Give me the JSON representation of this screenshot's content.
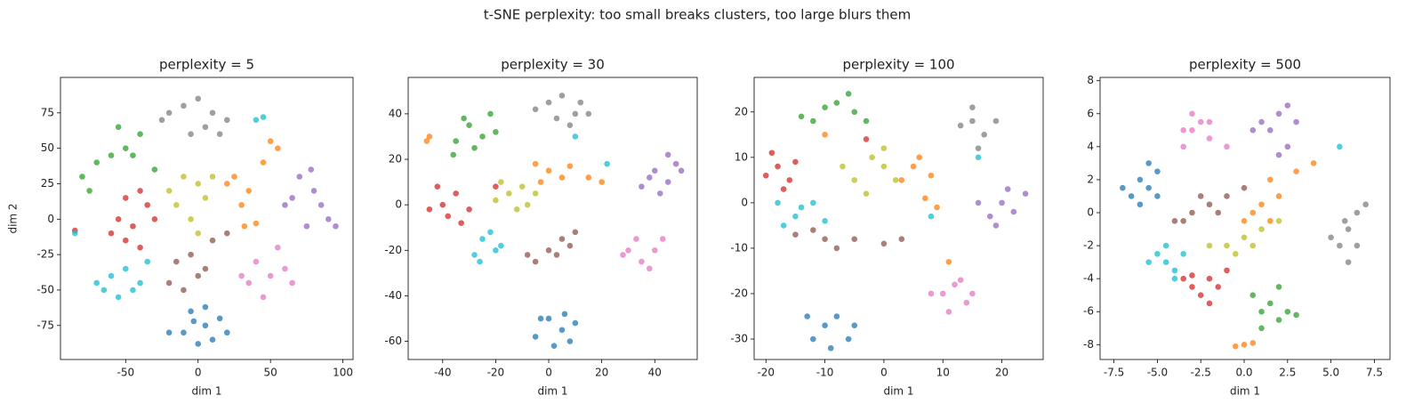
{
  "title": "t-SNE perplexity: too small breaks clusters, too large blurs them",
  "chart_data": [
    {
      "type": "scatter",
      "title": "perplexity = 5",
      "xlabel": "dim 1",
      "ylabel": "dim 2",
      "xlim": [
        -95,
        107
      ],
      "ylim": [
        -99,
        100
      ],
      "xticks": [
        -50,
        0,
        50,
        100
      ],
      "yticks": [
        -75,
        -50,
        -25,
        0,
        25,
        50,
        75
      ],
      "series": [
        {
          "color": "#1f77b4",
          "x": [
            -5,
            5,
            15,
            20,
            -10,
            0,
            10,
            -20,
            5,
            -3
          ],
          "y": [
            -65,
            -62,
            -70,
            -80,
            -80,
            -88,
            -85,
            -80,
            -75,
            -72
          ]
        },
        {
          "color": "#ff7f0e",
          "x": [
            25,
            35,
            30,
            45,
            55,
            50,
            32,
            40,
            20
          ],
          "y": [
            30,
            20,
            10,
            40,
            50,
            55,
            -5,
            -3,
            25
          ]
        },
        {
          "color": "#2ca02c",
          "x": [
            -50,
            -40,
            -55,
            -70,
            -80,
            -75,
            -60,
            -45,
            -30
          ],
          "y": [
            50,
            60,
            65,
            40,
            30,
            20,
            45,
            45,
            35
          ]
        },
        {
          "color": "#d62728",
          "x": [
            -50,
            -40,
            -35,
            -55,
            -45,
            -60,
            -40,
            -30,
            -85,
            -50
          ],
          "y": [
            15,
            20,
            10,
            0,
            -5,
            -10,
            -20,
            0,
            -8,
            -15
          ]
        },
        {
          "color": "#9467bd",
          "x": [
            70,
            80,
            60,
            90,
            75,
            65,
            85,
            95,
            78
          ],
          "y": [
            30,
            20,
            10,
            0,
            -5,
            15,
            10,
            -5,
            35
          ]
        },
        {
          "color": "#8c564b",
          "x": [
            -15,
            -5,
            0,
            -20,
            10,
            20,
            5,
            -10
          ],
          "y": [
            -30,
            -25,
            -40,
            -45,
            -15,
            -10,
            -35,
            -50
          ]
        },
        {
          "color": "#e377c2",
          "x": [
            40,
            50,
            35,
            60,
            45,
            55,
            30,
            65
          ],
          "y": [
            -30,
            -40,
            -45,
            -35,
            -55,
            -20,
            -40,
            -45
          ]
        },
        {
          "color": "#7f7f7f",
          "x": [
            -20,
            -10,
            0,
            10,
            20,
            -5,
            5,
            15,
            -25
          ],
          "y": [
            75,
            80,
            85,
            75,
            70,
            60,
            65,
            60,
            70
          ]
        },
        {
          "color": "#bcbd22",
          "x": [
            -10,
            0,
            5,
            -15,
            -5,
            10,
            -20,
            0
          ],
          "y": [
            30,
            25,
            15,
            10,
            0,
            30,
            20,
            -10
          ]
        },
        {
          "color": "#17becf",
          "x": [
            -60,
            -50,
            -40,
            -55,
            -70,
            -35,
            -45,
            -65,
            45,
            40,
            -85
          ],
          "y": [
            -40,
            -35,
            -45,
            -55,
            -45,
            -30,
            -50,
            -50,
            72,
            70,
            -10
          ]
        }
      ]
    },
    {
      "type": "scatter",
      "title": "perplexity = 30",
      "xlabel": "dim 1",
      "xlim": [
        -53,
        56
      ],
      "ylim": [
        -68,
        56
      ],
      "xticks": [
        -40,
        -20,
        0,
        20,
        40
      ],
      "yticks": [
        -60,
        -40,
        -20,
        0,
        20,
        40
      ],
      "series": [
        {
          "color": "#1f77b4",
          "x": [
            0,
            5,
            10,
            -5,
            2,
            8,
            -3,
            6
          ],
          "y": [
            -50,
            -55,
            -52,
            -58,
            -62,
            -60,
            -50,
            -48
          ]
        },
        {
          "color": "#ff7f0e",
          "x": [
            0,
            5,
            -3,
            8,
            15,
            20,
            -5,
            -45,
            -46
          ],
          "y": [
            15,
            12,
            10,
            17,
            12,
            10,
            18,
            30,
            28
          ]
        },
        {
          "color": "#2ca02c",
          "x": [
            -30,
            -25,
            -35,
            -20,
            -28,
            -32,
            -22,
            -36
          ],
          "y": [
            35,
            30,
            28,
            32,
            25,
            38,
            40,
            22
          ]
        },
        {
          "color": "#d62728",
          "x": [
            -40,
            -35,
            -38,
            -45,
            -30,
            -42,
            -33,
            -20
          ],
          "y": [
            0,
            5,
            -5,
            -2,
            -2,
            8,
            -8,
            8
          ]
        },
        {
          "color": "#9467bd",
          "x": [
            40,
            45,
            35,
            48,
            42,
            50,
            38,
            45
          ],
          "y": [
            15,
            10,
            8,
            18,
            5,
            15,
            12,
            22
          ]
        },
        {
          "color": "#8c564b",
          "x": [
            0,
            5,
            -5,
            10,
            3,
            -8,
            8
          ],
          "y": [
            -20,
            -15,
            -25,
            -12,
            -22,
            -22,
            -18
          ]
        },
        {
          "color": "#e377c2",
          "x": [
            30,
            35,
            40,
            33,
            38,
            28,
            43
          ],
          "y": [
            -20,
            -25,
            -20,
            -15,
            -28,
            -22,
            -15
          ]
        },
        {
          "color": "#7f7f7f",
          "x": [
            0,
            5,
            10,
            -5,
            3,
            12,
            8,
            15
          ],
          "y": [
            45,
            48,
            40,
            42,
            38,
            45,
            35,
            40
          ]
        },
        {
          "color": "#bcbd22",
          "x": [
            -15,
            -10,
            -20,
            -5,
            -12,
            -18,
            -8
          ],
          "y": [
            5,
            8,
            2,
            5,
            -2,
            10,
            0
          ]
        },
        {
          "color": "#17becf",
          "x": [
            -25,
            -20,
            -28,
            -22,
            -18,
            -26,
            10,
            22
          ],
          "y": [
            -15,
            -20,
            -22,
            -12,
            -18,
            -25,
            30,
            18
          ]
        }
      ]
    },
    {
      "type": "scatter",
      "title": "perplexity = 100",
      "xlabel": "dim 1",
      "xlim": [
        -22,
        27
      ],
      "ylim": [
        -34.5,
        27.6
      ],
      "xticks": [
        -20,
        -10,
        0,
        10,
        20
      ],
      "yticks": [
        -30,
        -20,
        -10,
        0,
        10,
        20
      ],
      "series": [
        {
          "color": "#1f77b4",
          "x": [
            -10,
            -8,
            -12,
            -6,
            -9,
            -13,
            -5
          ],
          "y": [
            -27,
            -25,
            -30,
            -30,
            -32,
            -25,
            -27
          ]
        },
        {
          "color": "#ff7f0e",
          "x": [
            5,
            8,
            6,
            3,
            9,
            7,
            -10,
            11
          ],
          "y": [
            8,
            6,
            10,
            5,
            -1,
            1,
            15,
            -13
          ]
        },
        {
          "color": "#2ca02c",
          "x": [
            -8,
            -5,
            -10,
            -14,
            -6,
            -3,
            -12
          ],
          "y": [
            22,
            20,
            21,
            19,
            24,
            18,
            18
          ]
        },
        {
          "color": "#d62728",
          "x": [
            -18,
            -16,
            -20,
            -15,
            -17,
            -19,
            -3
          ],
          "y": [
            8,
            5,
            6,
            9,
            3,
            11,
            14
          ]
        },
        {
          "color": "#9467bd",
          "x": [
            20,
            22,
            18,
            24,
            19,
            21,
            16
          ],
          "y": [
            0,
            -2,
            -3,
            2,
            -5,
            3,
            0
          ]
        },
        {
          "color": "#8c564b",
          "x": [
            -10,
            -5,
            -15,
            0,
            -8,
            3,
            -12
          ],
          "y": [
            -8,
            -8,
            -7,
            -9,
            -10,
            -8,
            -6
          ]
        },
        {
          "color": "#e377c2",
          "x": [
            10,
            12,
            14,
            11,
            13,
            8,
            15
          ],
          "y": [
            -20,
            -18,
            -22,
            -24,
            -17,
            -20,
            -20
          ]
        },
        {
          "color": "#7f7f7f",
          "x": [
            15,
            17,
            13,
            19,
            16,
            15
          ],
          "y": [
            18,
            15,
            17,
            18,
            12,
            21
          ]
        },
        {
          "color": "#bcbd22",
          "x": [
            -5,
            0,
            -2,
            2,
            -7,
            -3,
            0
          ],
          "y": [
            5,
            8,
            10,
            5,
            8,
            2,
            12
          ]
        },
        {
          "color": "#17becf",
          "x": [
            -15,
            -12,
            -17,
            -14,
            -10,
            -18,
            8,
            16
          ],
          "y": [
            -3,
            0,
            -5,
            -1,
            -4,
            0,
            -3,
            10
          ]
        }
      ]
    },
    {
      "type": "scatter",
      "title": "perplexity = 500",
      "xlabel": "dim 1",
      "xlim": [
        -8.3,
        8.4
      ],
      "ylim": [
        -8.9,
        8.2
      ],
      "xticks": [
        -7.5,
        {
          "value": -5,
          "label": "-5.0"
        },
        -2.5,
        {
          "value": 0,
          "label": "0.0"
        },
        2.5,
        {
          "value": 5,
          "label": "5.0"
        },
        7.5
      ],
      "yticks": [
        -8,
        -6,
        -4,
        -2,
        0,
        2,
        4,
        6,
        8
      ],
      "series": [
        {
          "color": "#1f77b4",
          "x": [
            -6,
            -5.5,
            -6.5,
            -5,
            -6,
            -5.5,
            -7,
            -5
          ],
          "y": [
            2,
            1.5,
            1,
            2.5,
            0.5,
            3,
            1.5,
            1
          ]
        },
        {
          "color": "#ff7f0e",
          "x": [
            0.5,
            1,
            1.5,
            2,
            3,
            4,
            0,
            1.5,
            0,
            0.5,
            -0.5
          ],
          "y": [
            0,
            0.5,
            -0.5,
            1,
            2.5,
            3,
            -0.5,
            2,
            -8,
            -7.9,
            -8.1
          ]
        },
        {
          "color": "#2ca02c",
          "x": [
            1,
            1.5,
            2,
            0.5,
            2.5,
            3,
            1,
            2
          ],
          "y": [
            -6,
            -5.5,
            -6.5,
            -5,
            -6,
            -6.2,
            -7,
            -4.5
          ]
        },
        {
          "color": "#d62728",
          "x": [
            -3,
            -2,
            -2.5,
            -3.5,
            -1.5,
            -2,
            -1,
            -3
          ],
          "y": [
            -4.5,
            -4,
            -5,
            -4,
            -4.5,
            -5.5,
            -3.5,
            -3.8
          ]
        },
        {
          "color": "#9467bd",
          "x": [
            1.5,
            2,
            2.5,
            1,
            3,
            2,
            0.5,
            2.5
          ],
          "y": [
            5,
            6,
            4,
            5.5,
            5.5,
            3.5,
            5,
            6.5
          ]
        },
        {
          "color": "#8c564b",
          "x": [
            -3,
            -2,
            -1,
            -3.5,
            -2.5,
            -1.5,
            0,
            -4
          ],
          "y": [
            0,
            0.5,
            1,
            -0.5,
            1,
            0,
            1.5,
            -0.5
          ]
        },
        {
          "color": "#e377c2",
          "x": [
            -3,
            -2.5,
            -2,
            -3.5,
            -2,
            -1,
            -3,
            -3.5
          ],
          "y": [
            5,
            5.5,
            4.5,
            4,
            5.5,
            4,
            6,
            5
          ]
        },
        {
          "color": "#7f7f7f",
          "x": [
            6,
            6.5,
            5.5,
            6,
            7,
            5,
            6.5,
            5.8
          ],
          "y": [
            -1,
            0,
            -2,
            -3,
            0.5,
            -1.5,
            -2,
            -0.5
          ]
        },
        {
          "color": "#bcbd22",
          "x": [
            -1,
            0,
            1,
            -2,
            2,
            -0.5,
            0.5
          ],
          "y": [
            -2,
            -1.5,
            -1,
            -2,
            -0.5,
            -2.5,
            -2
          ]
        },
        {
          "color": "#17becf",
          "x": [
            -4.5,
            -5,
            -4,
            -5.5,
            -4.5,
            -4,
            5.5,
            -3.5
          ],
          "y": [
            -3,
            -2.5,
            -3.5,
            -3,
            -2,
            -4,
            4,
            -2.5
          ]
        }
      ]
    }
  ]
}
